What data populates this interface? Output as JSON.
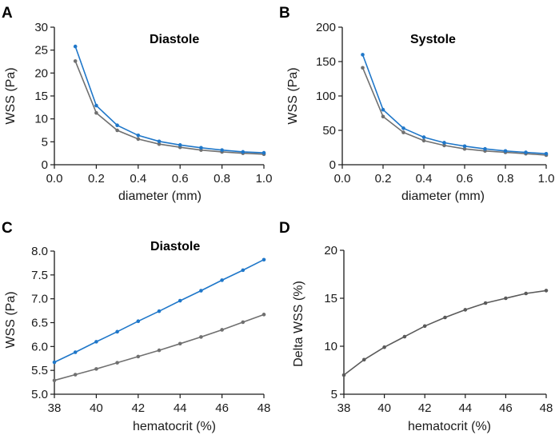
{
  "chart_data": [
    {
      "panel": "A",
      "type": "line",
      "title": "Diastole",
      "xlabel": "diameter (mm)",
      "ylabel": "WSS (Pa)",
      "xlim": [
        0.0,
        1.0
      ],
      "ylim": [
        0,
        30
      ],
      "xticks": [
        "0.0",
        "0.2",
        "0.4",
        "0.6",
        "0.8",
        "1.0"
      ],
      "yticks": [
        "0",
        "5",
        "10",
        "15",
        "20",
        "25",
        "30"
      ],
      "x": [
        0.1,
        0.2,
        0.3,
        0.4,
        0.5,
        0.6,
        0.7,
        0.8,
        0.9,
        1.0
      ],
      "series": [
        {
          "name": "blue",
          "color": "#1f77c9",
          "values": [
            25.8,
            12.9,
            8.6,
            6.4,
            5.1,
            4.3,
            3.7,
            3.2,
            2.8,
            2.6
          ]
        },
        {
          "name": "gray",
          "color": "#707070",
          "values": [
            22.6,
            11.3,
            7.5,
            5.6,
            4.5,
            3.8,
            3.2,
            2.8,
            2.5,
            2.3
          ]
        }
      ]
    },
    {
      "panel": "B",
      "type": "line",
      "title": "Systole",
      "xlabel": "diameter (mm)",
      "ylabel": "WSS (Pa)",
      "xlim": [
        0.0,
        1.0
      ],
      "ylim": [
        0,
        200
      ],
      "xticks": [
        "0.0",
        "0.2",
        "0.4",
        "0.6",
        "0.8",
        "1.0"
      ],
      "yticks": [
        "0",
        "50",
        "100",
        "150",
        "200"
      ],
      "x": [
        0.1,
        0.2,
        0.3,
        0.4,
        0.5,
        0.6,
        0.7,
        0.8,
        0.9,
        1.0
      ],
      "series": [
        {
          "name": "blue",
          "color": "#1f77c9",
          "values": [
            160,
            80,
            53,
            40,
            32,
            27,
            23,
            20,
            18,
            16
          ]
        },
        {
          "name": "gray",
          "color": "#707070",
          "values": [
            141,
            70,
            47,
            35,
            28,
            23,
            20,
            18,
            16,
            14
          ]
        }
      ]
    },
    {
      "panel": "C",
      "type": "line",
      "title": "Diastole",
      "xlabel": "hematocrit (%)",
      "ylabel": "WSS (Pa)",
      "xlim": [
        38,
        48
      ],
      "ylim": [
        5.0,
        8.0
      ],
      "xticks": [
        "38",
        "40",
        "42",
        "44",
        "46",
        "48"
      ],
      "yticks": [
        "5.0",
        "5.5",
        "6.0",
        "6.5",
        "7.0",
        "7.5",
        "8.0"
      ],
      "x": [
        38,
        39,
        40,
        41,
        42,
        43,
        44,
        45,
        46,
        47,
        48
      ],
      "series": [
        {
          "name": "blue",
          "color": "#1f77c9",
          "values": [
            5.67,
            5.88,
            6.1,
            6.31,
            6.53,
            6.74,
            6.96,
            7.17,
            7.39,
            7.6,
            7.82
          ]
        },
        {
          "name": "gray",
          "color": "#707070",
          "values": [
            5.29,
            5.41,
            5.53,
            5.66,
            5.79,
            5.92,
            6.06,
            6.2,
            6.35,
            6.51,
            6.67
          ]
        }
      ]
    },
    {
      "panel": "D",
      "type": "line",
      "title": "",
      "xlabel": "hematocrit (%)",
      "ylabel": "Delta WSS (%)",
      "xlim": [
        38,
        48
      ],
      "ylim": [
        5,
        20
      ],
      "xticks": [
        "38",
        "40",
        "42",
        "44",
        "46",
        "48"
      ],
      "yticks": [
        "5",
        "10",
        "15",
        "20"
      ],
      "x": [
        38,
        39,
        40,
        41,
        42,
        43,
        44,
        45,
        46,
        47,
        48
      ],
      "series": [
        {
          "name": "gray",
          "color": "#5a5a5a",
          "values": [
            7.0,
            8.6,
            9.9,
            11.0,
            12.1,
            13.0,
            13.8,
            14.5,
            15.0,
            15.5,
            15.8
          ]
        }
      ]
    }
  ]
}
